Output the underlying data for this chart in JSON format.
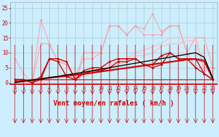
{
  "x": [
    0,
    1,
    2,
    3,
    4,
    5,
    6,
    7,
    8,
    9,
    10,
    11,
    12,
    13,
    14,
    15,
    16,
    17,
    18,
    19,
    20,
    21,
    22,
    23
  ],
  "background_color": "#cceeff",
  "grid_color": "#aacccc",
  "xlabel": "Vent moyen/en rafales ( km/h )",
  "xlabel_color": "#cc0000",
  "xlabel_fontsize": 7,
  "tick_color": "#cc0000",
  "ylim": [
    -0.5,
    27
  ],
  "yticks": [
    0,
    5,
    10,
    15,
    20,
    25
  ],
  "light_pink": "#ff9999",
  "medium_pink": "#ffbbbb",
  "dark_red": "#cc0000",
  "black_line": "#000000",
  "series_light1": [
    8,
    3,
    0,
    21,
    13,
    7,
    7,
    1,
    10,
    10,
    10,
    19,
    19,
    16,
    19,
    18,
    23,
    17,
    19,
    19,
    10,
    5,
    5,
    5
  ],
  "series_light2": [
    1,
    1,
    0,
    13,
    13,
    7,
    6,
    1,
    8,
    8,
    10,
    19,
    19,
    16,
    19,
    16,
    16,
    16,
    19,
    19,
    10,
    15,
    15,
    5
  ],
  "series_medium1": [
    0,
    0,
    0,
    1,
    2,
    2,
    2,
    2,
    3,
    4,
    5,
    6,
    7,
    8,
    10,
    11,
    12,
    13,
    15,
    15,
    15,
    15,
    5,
    5
  ],
  "series_medium2": [
    0,
    0,
    0,
    0,
    1,
    1,
    1,
    1,
    2,
    3,
    4,
    5,
    6,
    7,
    9,
    9,
    10,
    12,
    13,
    13,
    14,
    14,
    4,
    4
  ],
  "series_dark1": [
    1,
    1,
    0,
    2,
    8,
    8,
    7,
    1,
    4,
    5,
    5,
    7,
    8,
    8,
    8,
    6,
    6,
    9,
    10,
    8,
    8,
    8,
    3,
    1
  ],
  "series_dark2": [
    1,
    1,
    0,
    1,
    8,
    7,
    2,
    1,
    3,
    4,
    4,
    5,
    7,
    7,
    8,
    6,
    5,
    6,
    10,
    8,
    8,
    5,
    3,
    1
  ],
  "series_dark_flat": [
    1,
    1,
    1,
    1,
    1,
    1,
    1,
    1,
    1,
    1,
    1,
    1,
    1,
    1,
    1,
    1,
    1,
    1,
    1,
    1,
    1,
    1,
    1,
    1
  ],
  "series_trend1": [
    0.5,
    0.7,
    1.0,
    1.3,
    1.7,
    2.0,
    2.3,
    2.7,
    3.0,
    3.4,
    3.8,
    4.2,
    4.6,
    5.0,
    5.4,
    5.8,
    6.2,
    6.6,
    7.0,
    7.4,
    7.8,
    8.0,
    7.5,
    1.5
  ],
  "series_trend2": [
    0.3,
    0.5,
    0.8,
    1.1,
    1.5,
    1.8,
    2.1,
    2.5,
    2.8,
    3.2,
    3.6,
    4.0,
    4.4,
    4.8,
    5.2,
    5.6,
    6.0,
    6.4,
    6.8,
    7.2,
    7.6,
    7.8,
    7.0,
    1.2
  ],
  "series_black": [
    0,
    0.4,
    0.8,
    1.2,
    1.7,
    2.1,
    2.6,
    3.0,
    3.5,
    4.0,
    4.5,
    5.0,
    5.5,
    6.0,
    6.5,
    7.0,
    7.5,
    8.0,
    8.5,
    9.0,
    9.5,
    10.0,
    8.5,
    1.5
  ]
}
